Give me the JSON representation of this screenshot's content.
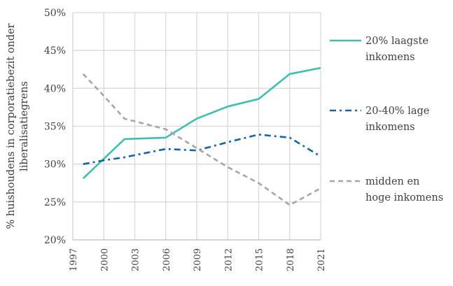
{
  "chart_data": {
    "type": "line",
    "title": "",
    "ylabel_lines": [
      "% huishoudens  in corporatiebezit onder",
      "liberalisatiegrens"
    ],
    "xlabel": "",
    "x_ticks": [
      "1997",
      "2000",
      "2003",
      "2006",
      "2009",
      "2012",
      "2015",
      "2018",
      "2021"
    ],
    "y_ticks": [
      "20%",
      "25%",
      "30%",
      "35%",
      "40%",
      "45%",
      "50%"
    ],
    "xlim": [
      1997,
      2021
    ],
    "ylim": [
      20,
      50
    ],
    "grid": true,
    "legend_position": "right",
    "series": [
      {
        "name": "20% laagste inkomens",
        "name_lines": [
          "20% laagste",
          "inkomens"
        ],
        "color": "#3dbfaf",
        "dash": "solid",
        "points": [
          [
            1998,
            28.1
          ],
          [
            2000,
            30.7
          ],
          [
            2002,
            33.3
          ],
          [
            2006,
            33.5
          ],
          [
            2009,
            36.0
          ],
          [
            2012,
            37.6
          ],
          [
            2015,
            38.6
          ],
          [
            2018,
            41.9
          ],
          [
            2021,
            42.7
          ]
        ]
      },
      {
        "name": "20-40% lage inkomens",
        "name_lines": [
          "20-40% lage",
          "inkomens"
        ],
        "color": "#1565a8",
        "dash": "dashdot",
        "points": [
          [
            1998,
            30.0
          ],
          [
            2000,
            30.5
          ],
          [
            2002,
            30.9
          ],
          [
            2006,
            32.0
          ],
          [
            2009,
            31.8
          ],
          [
            2012,
            32.9
          ],
          [
            2015,
            33.9
          ],
          [
            2018,
            33.5
          ],
          [
            2021,
            31.0
          ]
        ]
      },
      {
        "name": "midden en hoge inkomens",
        "name_lines": [
          "midden en",
          "hoge inkomens"
        ],
        "color": "#a6a6a6",
        "dash": "dash",
        "points": [
          [
            1998,
            41.9
          ],
          [
            2000,
            39.0
          ],
          [
            2002,
            36.0
          ],
          [
            2006,
            34.6
          ],
          [
            2009,
            32.1
          ],
          [
            2012,
            29.6
          ],
          [
            2015,
            27.5
          ],
          [
            2018,
            24.6
          ],
          [
            2021,
            26.8
          ]
        ]
      }
    ]
  }
}
